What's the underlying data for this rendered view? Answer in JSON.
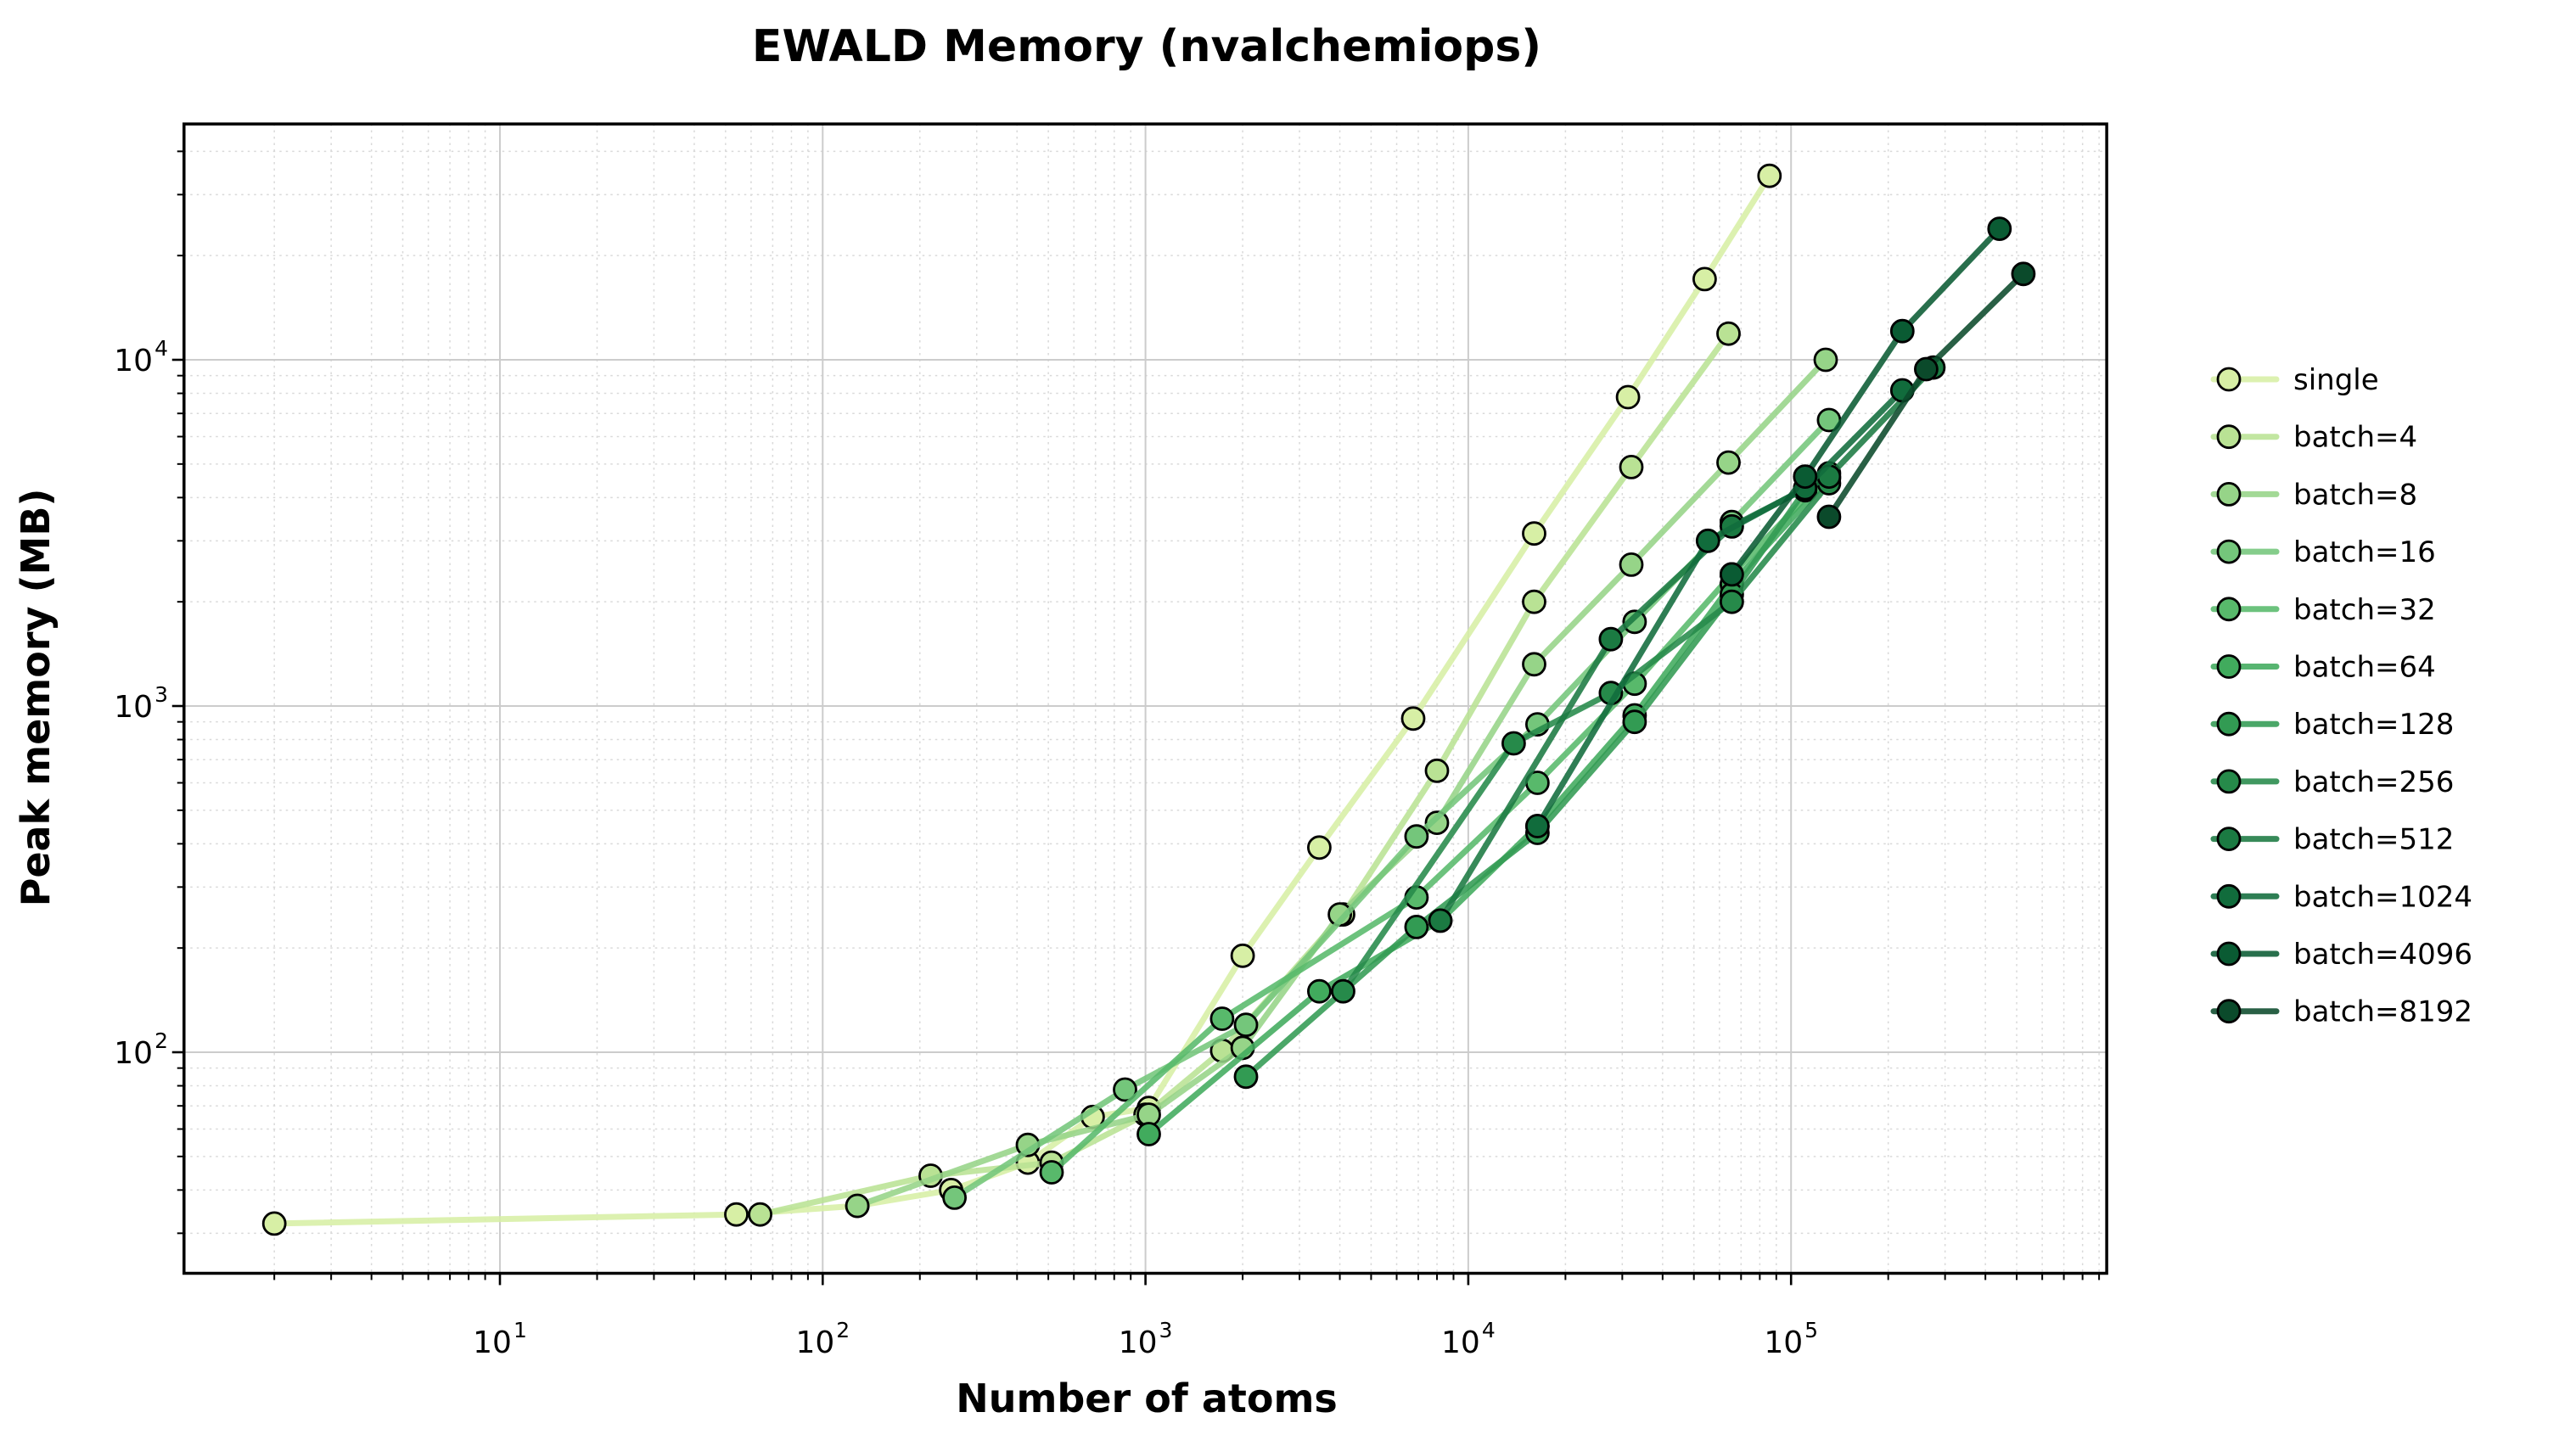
{
  "chart_data": {
    "type": "line",
    "title": "EWALD Memory (nvalchemiops)",
    "xlabel": "Number of atoms",
    "ylabel": "Peak memory (MB)",
    "x_scale": "log",
    "y_scale": "log",
    "xlim": [
      1.05,
      950000
    ],
    "ylim": [
      23,
      48000
    ],
    "grid": true,
    "legend_position": "right",
    "x_tick_exponents": [
      1,
      2,
      3,
      4,
      5
    ],
    "y_tick_exponents": [
      2,
      3,
      4
    ],
    "x_tick_labels": [
      "10^1",
      "10^2",
      "10^3",
      "10^4",
      "10^5"
    ],
    "y_tick_labels": [
      "10^2",
      "10^3",
      "10^4"
    ],
    "tick_base": "10",
    "colors": {
      "grid_major": "#cccccc",
      "grid_minor": "#d9d9d9",
      "spine": "#000000",
      "marker_edge": "#000000"
    },
    "series": [
      {
        "name": "single",
        "color": "#d7efa5",
        "points": [
          [
            2,
            32
          ],
          [
            54,
            34
          ],
          [
            128,
            36
          ],
          [
            250,
            40
          ],
          [
            432,
            48
          ],
          [
            686,
            65
          ],
          [
            1024,
            69
          ],
          [
            2000,
            190
          ],
          [
            3456,
            390
          ],
          [
            6750,
            920
          ],
          [
            16000,
            3150
          ],
          [
            31250,
            7800
          ],
          [
            54000,
            17100
          ],
          [
            85750,
            34000
          ]
        ]
      },
      {
        "name": "batch=4",
        "color": "#b9e294",
        "points": [
          [
            64,
            34
          ],
          [
            216,
            44
          ],
          [
            512,
            48
          ],
          [
            1000,
            66
          ],
          [
            1728,
            101
          ],
          [
            4096,
            250
          ],
          [
            8000,
            650
          ],
          [
            16000,
            2000
          ],
          [
            32000,
            4900
          ],
          [
            64000,
            11900
          ]
        ]
      },
      {
        "name": "batch=8",
        "color": "#96d488",
        "points": [
          [
            128,
            36
          ],
          [
            432,
            54
          ],
          [
            1024,
            66
          ],
          [
            2000,
            103
          ],
          [
            4000,
            250
          ],
          [
            8000,
            460
          ],
          [
            16000,
            1320
          ],
          [
            32000,
            2560
          ],
          [
            64000,
            5050
          ],
          [
            128000,
            10000
          ]
        ]
      },
      {
        "name": "batch=16",
        "color": "#74c67b",
        "points": [
          [
            256,
            38
          ],
          [
            864,
            78
          ],
          [
            2048,
            120
          ],
          [
            6912,
            420
          ],
          [
            16384,
            885
          ],
          [
            32768,
            1750
          ],
          [
            65536,
            3400
          ],
          [
            131072,
            6700
          ]
        ]
      },
      {
        "name": "batch=32",
        "color": "#58b96b",
        "points": [
          [
            512,
            45
          ],
          [
            1728,
            125
          ],
          [
            6912,
            280
          ],
          [
            16384,
            600
          ],
          [
            32768,
            1160
          ],
          [
            65536,
            2400
          ],
          [
            131072,
            4700
          ]
        ]
      },
      {
        "name": "batch=64",
        "color": "#41ab5d",
        "points": [
          [
            1024,
            58
          ],
          [
            3456,
            150
          ],
          [
            8192,
            240
          ],
          [
            16384,
            450
          ],
          [
            32768,
            940
          ],
          [
            65536,
            2250
          ],
          [
            131072,
            4550
          ]
        ]
      },
      {
        "name": "batch=128",
        "color": "#329b53",
        "points": [
          [
            2048,
            85
          ],
          [
            6912,
            230
          ],
          [
            16384,
            430
          ],
          [
            32768,
            900
          ],
          [
            65536,
            2100
          ],
          [
            110592,
            4200
          ]
        ]
      },
      {
        "name": "batch=256",
        "color": "#268a4a",
        "points": [
          [
            4096,
            150
          ],
          [
            13824,
            780
          ],
          [
            27648,
            1090
          ],
          [
            65536,
            2000
          ],
          [
            131072,
            4400
          ]
        ]
      },
      {
        "name": "batch=512",
        "color": "#1b7a42",
        "points": [
          [
            8192,
            240
          ],
          [
            27648,
            1560
          ],
          [
            65536,
            3300
          ],
          [
            131072,
            4600
          ],
          [
            276000,
            9500
          ]
        ]
      },
      {
        "name": "batch=1024",
        "color": "#116c3c",
        "points": [
          [
            16384,
            450
          ],
          [
            55296,
            3000
          ],
          [
            110592,
            4260
          ],
          [
            221184,
            8160
          ]
        ]
      },
      {
        "name": "batch=4096",
        "color": "#0a5b33",
        "points": [
          [
            65536,
            2400
          ],
          [
            110592,
            4600
          ],
          [
            221184,
            12100
          ],
          [
            442368,
            23900
          ]
        ]
      },
      {
        "name": "batch=8192",
        "color": "#0b4a2b",
        "points": [
          [
            131072,
            3520
          ],
          [
            262144,
            9400
          ],
          [
            524288,
            17700
          ]
        ]
      }
    ]
  }
}
